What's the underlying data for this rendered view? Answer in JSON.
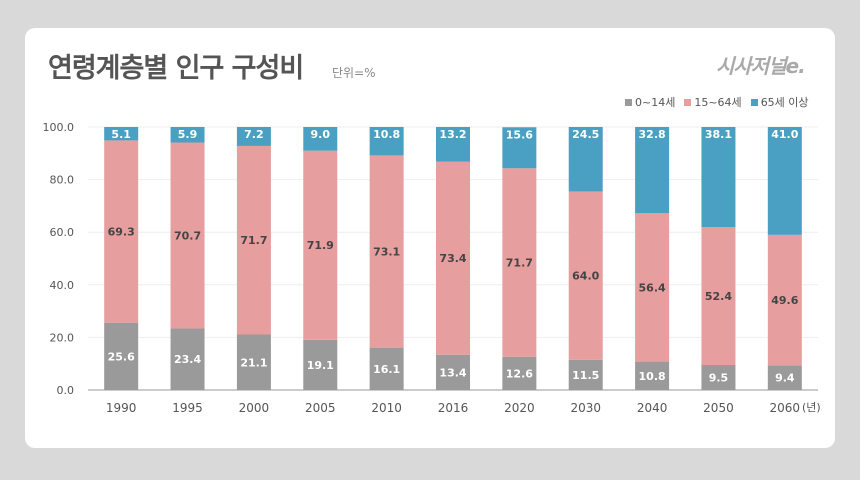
{
  "chart_data": {
    "type": "bar",
    "stacked": true,
    "title": "연령계층별 인구 구성비",
    "unit": "단위=%",
    "brand": "시사저널e.",
    "x_unit": "(년)",
    "categories": [
      "1990",
      "1995",
      "2000",
      "2005",
      "2010",
      "2016",
      "2020",
      "2030",
      "2040",
      "2050",
      "2060"
    ],
    "series": [
      {
        "name": "0~14세",
        "color": "#9a9a9a",
        "label_color": "#ffffff",
        "values": [
          25.6,
          23.4,
          21.1,
          19.1,
          16.1,
          13.4,
          12.6,
          11.5,
          10.8,
          9.5,
          9.4
        ]
      },
      {
        "name": "15~64세",
        "color": "#e69e9e",
        "label_color": "#444444",
        "values": [
          69.3,
          70.7,
          71.7,
          71.9,
          73.1,
          73.4,
          71.7,
          64.0,
          56.4,
          52.4,
          49.6
        ]
      },
      {
        "name": "65세 이상",
        "color": "#4aa0c2",
        "label_color": "#ffffff",
        "values": [
          5.1,
          5.9,
          7.2,
          9.0,
          10.8,
          13.2,
          15.6,
          24.5,
          32.8,
          38.1,
          41.0
        ]
      }
    ],
    "y_ticks": [
      "0.0",
      "20.0",
      "40.0",
      "60.0",
      "80.0",
      "100.0"
    ],
    "ylim": [
      0,
      100
    ],
    "legend_position": "top-right",
    "grid": true
  }
}
